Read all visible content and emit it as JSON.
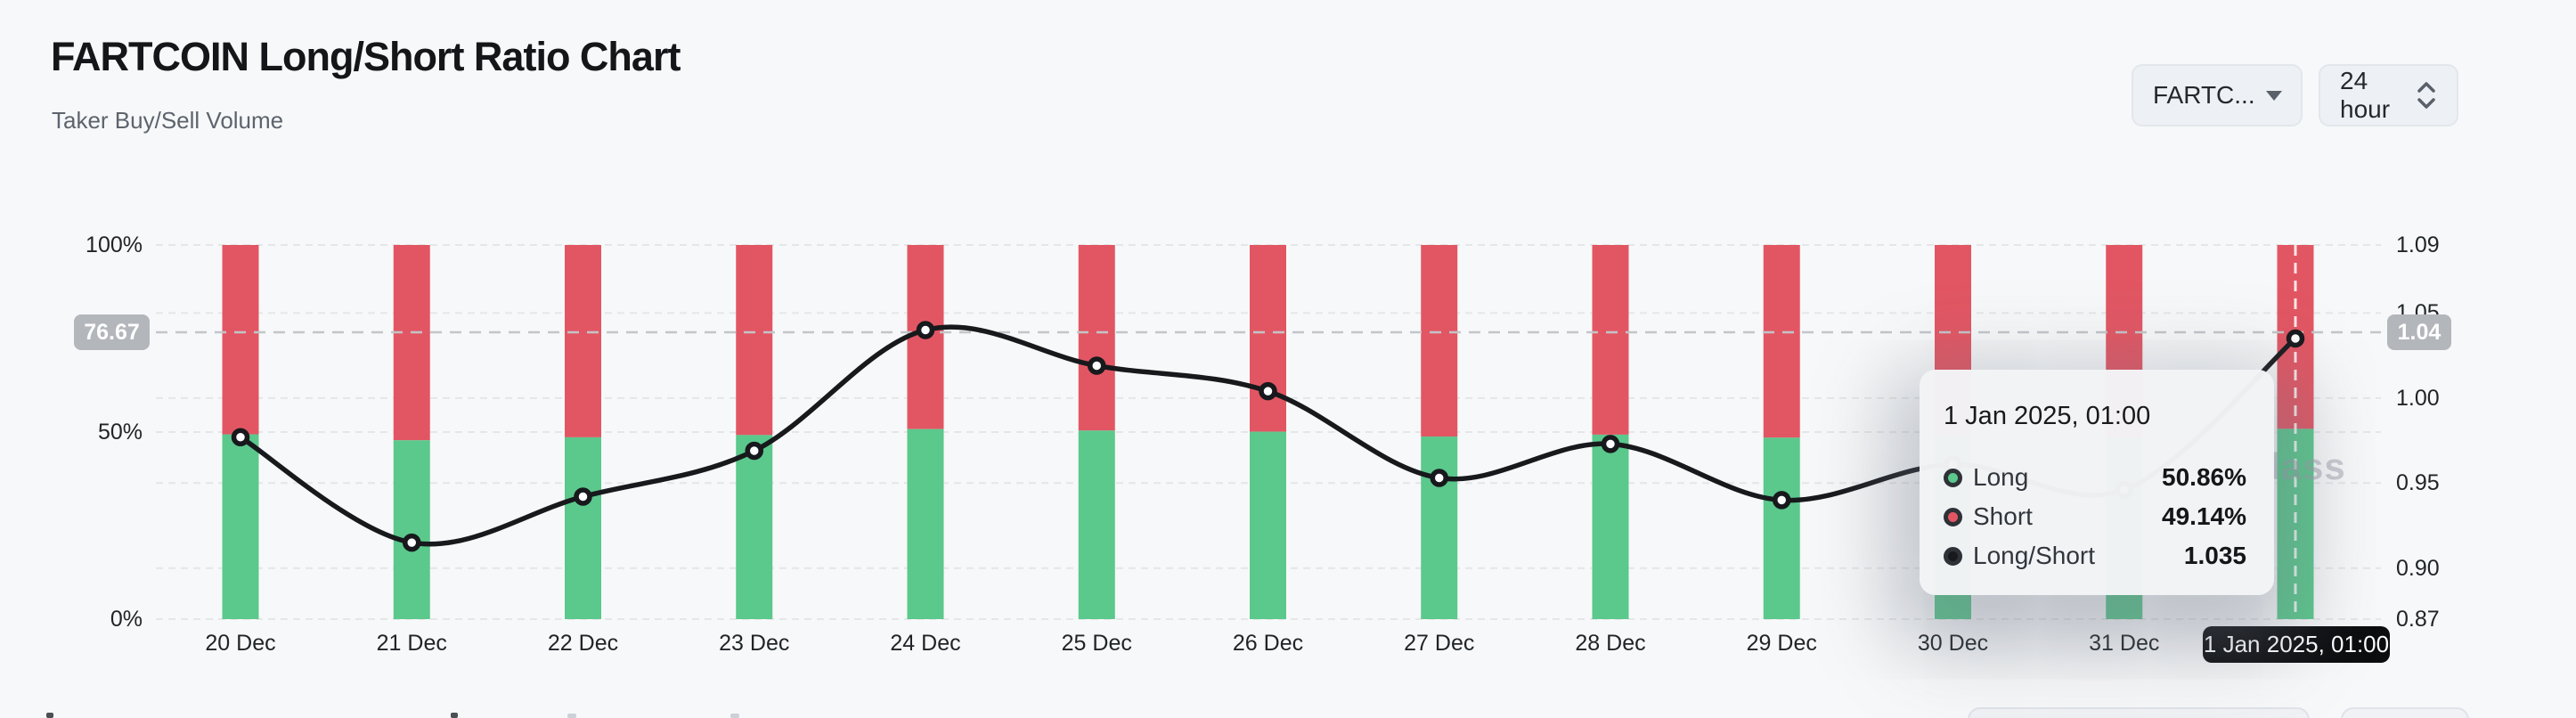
{
  "header": {
    "title": "FARTCOIN Long/Short Ratio Chart",
    "subtitle": "Taker Buy/Sell Volume"
  },
  "controls": {
    "symbol_select": {
      "label": "FARTC...",
      "icon": "caret-down-icon"
    },
    "interval_select": {
      "label": "24 hour",
      "icon": "chevron-up-down-icon"
    }
  },
  "chart_data": {
    "type": "stacked_bar_with_line",
    "title": "FARTCOIN Long/Short Ratio Chart",
    "categories": [
      "20 Dec",
      "21 Dec",
      "22 Dec",
      "23 Dec",
      "24 Dec",
      "25 Dec",
      "26 Dec",
      "27 Dec",
      "28 Dec",
      "29 Dec",
      "30 Dec",
      "31 Dec",
      "1 Jan"
    ],
    "series": [
      {
        "name": "Long",
        "type": "bar",
        "stack": "volume",
        "axis": "left",
        "unit": "%",
        "color": "#5bc88c",
        "values": [
          49.4,
          47.8,
          48.6,
          49.2,
          50.8,
          50.4,
          50.1,
          48.8,
          49.3,
          48.5,
          49.0,
          48.6,
          50.86
        ]
      },
      {
        "name": "Short",
        "type": "bar",
        "stack": "volume",
        "axis": "left",
        "unit": "%",
        "color": "#e25663",
        "values": [
          50.6,
          52.2,
          51.4,
          50.8,
          49.2,
          49.6,
          49.9,
          51.2,
          50.7,
          51.5,
          51.0,
          51.4,
          49.14
        ]
      },
      {
        "name": "Long/Short",
        "type": "line",
        "axis": "right",
        "color": "#17191c",
        "values": [
          0.977,
          0.915,
          0.942,
          0.969,
          1.04,
          1.019,
          1.004,
          0.953,
          0.973,
          0.94,
          0.961,
          0.946,
          1.035
        ]
      }
    ],
    "left_axis": {
      "min": 0,
      "max": 100,
      "tick_labels": [
        "100%",
        "50%",
        "0%"
      ],
      "extra_gridlines": [
        50
      ]
    },
    "right_axis": {
      "min": 0.87,
      "max": 1.09,
      "tick_labels": [
        "1.09",
        "1.05",
        "1.00",
        "0.95",
        "0.90",
        "0.87"
      ]
    },
    "grid": "dashed horizontal",
    "legend_position": "none"
  },
  "crosshair": {
    "left_badge": "76.67",
    "right_badge": "1.04",
    "x_badge": "1 Jan 2025, 01:00",
    "hover_index": 12
  },
  "tooltip": {
    "title": "1 Jan 2025, 01:00",
    "rows": [
      {
        "label": "Long",
        "value": "50.86%",
        "color": "#5bc88c"
      },
      {
        "label": "Short",
        "value": "49.14%",
        "color": "#e25663"
      },
      {
        "label": "Long/Short",
        "value": "1.035",
        "color": "#17191c"
      }
    ]
  },
  "watermark": {
    "text": "lass"
  },
  "colors": {
    "long": "#5bc88c",
    "short": "#e25663",
    "line": "#17191c",
    "badge_bg": "#b3b6bb",
    "pill_bg": "#0c0d0f",
    "background": "#f7f8f9",
    "gridline": "#e5e6e8",
    "crosshair": "#c2c5c9"
  }
}
